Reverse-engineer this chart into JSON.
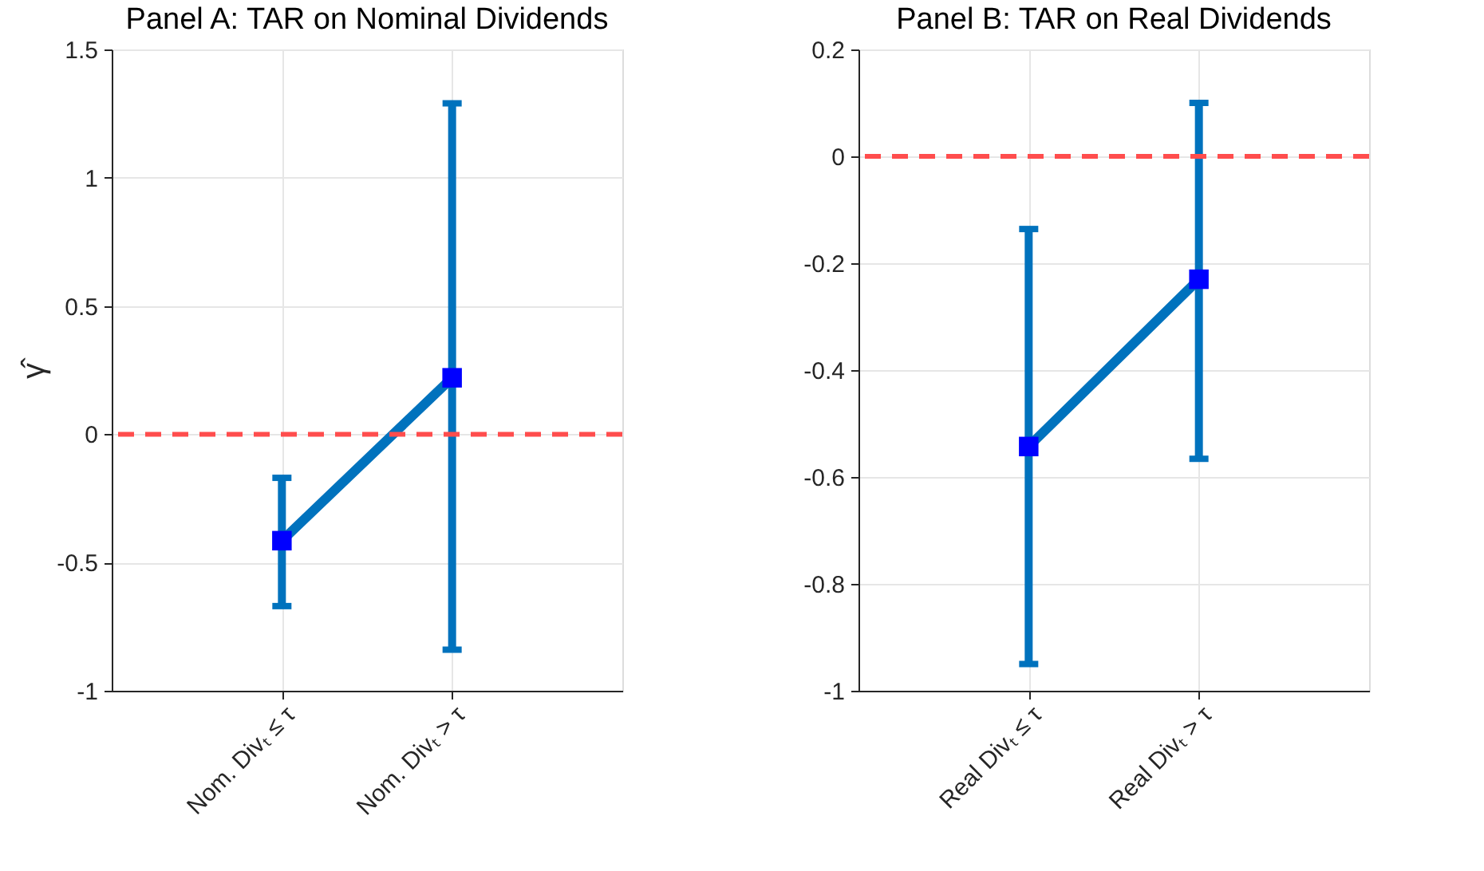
{
  "chart_data": [
    {
      "type": "line",
      "title": "Panel A: TAR on Nominal Dividends",
      "ylabel": "γ̂",
      "categories": [
        "Nom. Divₜ ≤ τ",
        "Nom. Divₜ > τ"
      ],
      "series": [
        {
          "color": "#0072bd",
          "values": [
            -0.415,
            0.22
          ],
          "errors": [
            [
              -0.67,
              -0.17
            ],
            [
              -0.84,
              1.29
            ]
          ]
        }
      ],
      "ylim": [
        -1,
        1.5
      ],
      "yticks": [
        -1,
        -0.5,
        0,
        0.5,
        1,
        1.5
      ],
      "grid": true,
      "marker": "square",
      "line_style": "solid",
      "ref_lines": [
        {
          "axis": "y",
          "value": 0,
          "color": "#ff4d4d",
          "line_style": "dashed"
        }
      ]
    },
    {
      "type": "line",
      "title": "Panel B: TAR on Real Dividends",
      "categories": [
        "Real Divₜ ≤ τ",
        "Real Divₜ > τ"
      ],
      "series": [
        {
          "color": "#0072bd",
          "values": [
            -0.543,
            -0.23
          ],
          "errors": [
            [
              -0.95,
              -0.136
            ],
            [
              -0.566,
              0.1
            ]
          ]
        }
      ],
      "ylim": [
        -1,
        0.2
      ],
      "yticks": [
        -1,
        -0.8,
        -0.6,
        -0.4,
        -0.2,
        0,
        0.2
      ],
      "grid": true,
      "marker": "square",
      "line_style": "solid",
      "ref_lines": [
        {
          "axis": "y",
          "value": 0,
          "color": "#ff4d4d",
          "line_style": "dashed"
        }
      ]
    }
  ]
}
